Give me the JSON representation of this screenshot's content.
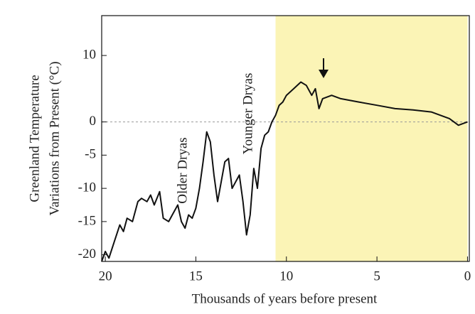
{
  "chart_data": {
    "type": "line",
    "ylabel": [
      "Greenland Temperature",
      "Variations from Present (°C)"
    ],
    "xlabel": "Thousands of years before present",
    "annotations": [
      "Older Dryas",
      "Younger Dryas"
    ],
    "x": [
      20.2,
      20,
      19.8,
      19.5,
      19.2,
      19,
      18.8,
      18.5,
      18.2,
      18,
      17.7,
      17.5,
      17.3,
      17,
      16.8,
      16.5,
      16.3,
      16,
      15.8,
      15.6,
      15.4,
      15.2,
      15,
      14.8,
      14.6,
      14.4,
      14.2,
      14,
      13.8,
      13.6,
      13.4,
      13.2,
      13,
      12.8,
      12.6,
      12.4,
      12.2,
      12,
      11.8,
      11.6,
      11.4,
      11.2,
      11,
      10.8,
      10.6,
      10.4,
      10.2,
      10,
      9.6,
      9.2,
      8.9,
      8.6,
      8.4,
      8.2,
      8,
      7.5,
      7,
      6,
      5,
      4,
      3,
      2,
      1,
      0.5,
      0
    ],
    "values": [
      -21,
      -19.5,
      -20.5,
      -18,
      -15.5,
      -16.5,
      -14.5,
      -15,
      -12,
      -11.5,
      -12,
      -11,
      -12.5,
      -10.5,
      -14.5,
      -15,
      -14,
      -12.5,
      -15,
      -16,
      -14,
      -14.5,
      -13,
      -10,
      -6,
      -1.5,
      -3,
      -8,
      -12,
      -9,
      -6,
      -5.5,
      -10,
      -9,
      -8,
      -12,
      -17,
      -14,
      -7,
      -10,
      -4,
      -2,
      -1.5,
      0,
      1,
      2.5,
      3,
      4,
      5,
      6,
      5.5,
      4,
      5,
      2,
      3.5,
      4,
      3.5,
      3,
      2.5,
      2,
      1.8,
      1.5,
      0.5,
      -0.5,
      0
    ],
    "color": "#111111",
    "highlight_xlim": [
      10.6,
      0
    ],
    "highlight_color": "#fbf4b6",
    "xlim": [
      20.2,
      -0.1
    ],
    "xticks": [
      20,
      15,
      10,
      5,
      0
    ],
    "ylim": [
      -21,
      16
    ],
    "yticks": [
      10,
      0,
      -5,
      -10,
      -15,
      -20
    ],
    "zero_line": true
  }
}
